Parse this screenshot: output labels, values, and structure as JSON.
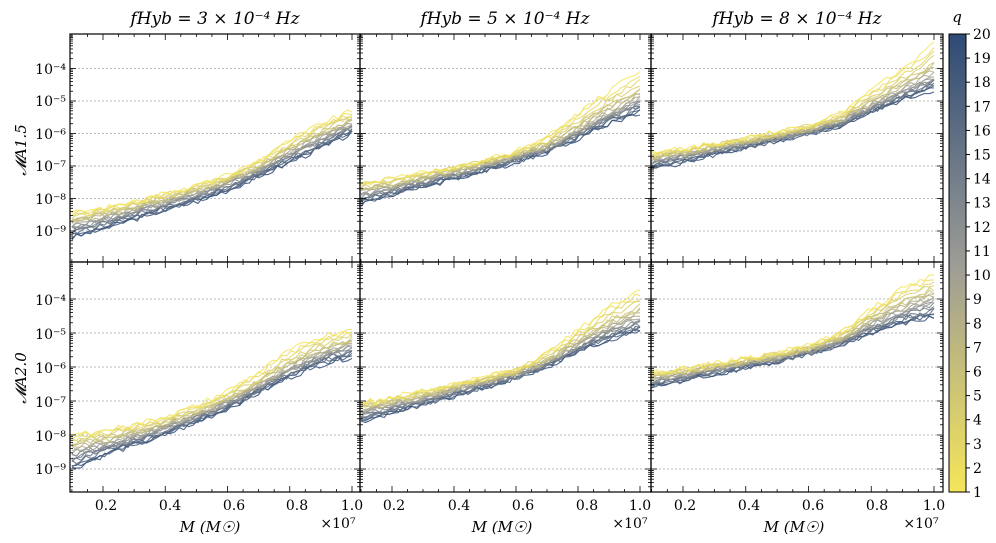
{
  "figure": {
    "colorbar": {
      "label": "q",
      "min": 1,
      "max": 20,
      "ticks": [
        "1",
        "2",
        "3",
        "4",
        "5",
        "6",
        "7",
        "8",
        "9",
        "10",
        "11",
        "12",
        "13",
        "14",
        "15",
        "16",
        "17",
        "18",
        "19",
        "20"
      ],
      "color_low": "#f5e55a",
      "color_mid": "#9c9c96",
      "color_high": "#2e4a75"
    },
    "x_axis": {
      "label": "M (M☉)",
      "ticks": [
        "0.2",
        "0.4",
        "0.6",
        "0.8",
        "1.0"
      ],
      "multiplier": "×10⁷"
    },
    "y_labels": [
      "𝓜A1.5",
      "𝓜A2.0"
    ],
    "y_ticks": [
      "10⁻⁹",
      "10⁻⁸",
      "10⁻⁷",
      "10⁻⁶",
      "10⁻⁵",
      "10⁻⁴"
    ],
    "column_titles": [
      "fHyb = 3 × 10⁻⁴ Hz",
      "fHyb = 5 × 10⁻⁴ Hz",
      "fHyb = 8 × 10⁻⁴ Hz"
    ]
  },
  "chart_data": [
    {
      "type": "line",
      "row": "A1.5",
      "title": "fHyb = 3 × 10⁻⁴ Hz",
      "xlabel": "M (M☉)",
      "ylabel": "MA1.5",
      "xlim": [
        1000000.0,
        10000000.0
      ],
      "ylim": [
        3e-10,
        0.001
      ],
      "yscale": "log",
      "x": [
        1000000.0,
        2000000.0,
        3000000.0,
        4000000.0,
        5000000.0,
        6000000.0,
        7000000.0,
        8000000.0,
        9000000.0,
        10000000.0
      ],
      "series": [
        {
          "q": 1,
          "values": [
            3.5e-09,
            5e-09,
            8e-09,
            1.5e-08,
            2.5e-08,
            5e-08,
            1.5e-07,
            6e-07,
            2e-06,
            5e-06
          ]
        },
        {
          "q": 5,
          "values": [
            2.5e-09,
            3.5e-09,
            6e-09,
            1.1e-08,
            2e-08,
            4e-08,
            1.1e-07,
            4e-07,
            1.2e-06,
            3e-06
          ]
        },
        {
          "q": 10,
          "values": [
            1.6e-09,
            2.5e-09,
            4.5e-09,
            8e-09,
            1.5e-08,
            3e-08,
            8e-08,
            2.5e-07,
            8e-07,
            2e-06
          ]
        },
        {
          "q": 15,
          "values": [
            1e-09,
            1.8e-09,
            3.2e-09,
            6e-09,
            1.1e-08,
            2.3e-08,
            6e-08,
            1.8e-07,
            5e-07,
            1.4e-06
          ]
        },
        {
          "q": 20,
          "values": [
            6e-10,
            1.2e-09,
            2.3e-09,
            4.5e-09,
            8e-09,
            1.8e-08,
            4.5e-08,
            1.3e-07,
            3.5e-07,
            1e-06
          ]
        }
      ]
    },
    {
      "type": "line",
      "row": "A1.5",
      "title": "fHyb = 5 × 10⁻⁴ Hz",
      "xlabel": "M (M☉)",
      "ylabel": "MA1.5",
      "xlim": [
        1000000.0,
        10000000.0
      ],
      "ylim": [
        3e-10,
        0.001
      ],
      "yscale": "log",
      "x": [
        1000000.0,
        2000000.0,
        3000000.0,
        4000000.0,
        5000000.0,
        6000000.0,
        7000000.0,
        8000000.0,
        9000000.0,
        10000000.0
      ],
      "series": [
        {
          "q": 1,
          "values": [
            3e-08,
            4e-08,
            6e-08,
            1e-07,
            1.6e-07,
            2.8e-07,
            8e-07,
            4e-06,
            2e-05,
            8e-05
          ]
        },
        {
          "q": 5,
          "values": [
            2.3e-08,
            3.2e-08,
            5e-08,
            8e-08,
            1.3e-07,
            2.3e-07,
            5e-07,
            2e-06,
            8e-06,
            2.5e-05
          ]
        },
        {
          "q": 10,
          "values": [
            1.5e-08,
            2.3e-08,
            3.8e-08,
            6.2e-08,
            1.05e-07,
            1.9e-07,
            3.8e-07,
            1.2e-06,
            4e-06,
            1.2e-05
          ]
        },
        {
          "q": 15,
          "values": [
            1e-08,
            1.7e-08,
            2.9e-08,
            5e-08,
            8.5e-08,
            1.6e-07,
            3.2e-07,
            9e-07,
            2.8e-06,
            7e-06
          ]
        },
        {
          "q": 20,
          "values": [
            7e-09,
            1.3e-08,
            2.3e-08,
            4e-08,
            7e-08,
            1.3e-07,
            2.7e-07,
            7e-07,
            2e-06,
            4.5e-06
          ]
        }
      ]
    },
    {
      "type": "line",
      "row": "A1.5",
      "title": "fHyb = 8 × 10⁻⁴ Hz",
      "xlabel": "M (M☉)",
      "ylabel": "MA1.5",
      "xlim": [
        1000000.0,
        10000000.0
      ],
      "ylim": [
        3e-10,
        0.001
      ],
      "yscale": "log",
      "x": [
        1000000.0,
        2000000.0,
        3000000.0,
        4000000.0,
        5000000.0,
        6000000.0,
        7000000.0,
        8000000.0,
        9000000.0,
        10000000.0
      ],
      "series": [
        {
          "q": 1,
          "values": [
            2.5e-07,
            3.5e-07,
            5e-07,
            7.5e-07,
            1.1e-06,
            1.8e-06,
            4e-06,
            2e-05,
            0.0001,
            0.0006
          ]
        },
        {
          "q": 5,
          "values": [
            2e-07,
            2.8e-07,
            4.2e-07,
            6.2e-07,
            9e-07,
            1.5e-06,
            3e-06,
            1.1e-05,
            4e-05,
            0.00015
          ]
        },
        {
          "q": 10,
          "values": [
            1.5e-07,
            2.2e-07,
            3.4e-07,
            5.2e-07,
            7.8e-07,
            1.25e-06,
            2.4e-06,
            7e-06,
            2.2e-05,
            6e-05
          ]
        },
        {
          "q": 15,
          "values": [
            1.1e-07,
            1.7e-07,
            2.7e-07,
            4.3e-07,
            6.7e-07,
            1.1e-06,
            2e-06,
            5.5e-06,
            1.5e-05,
            3.5e-05
          ]
        },
        {
          "q": 20,
          "values": [
            8e-08,
            1.3e-07,
            2.2e-07,
            3.6e-07,
            5.8e-07,
            9.5e-07,
            1.7e-06,
            4.5e-06,
            1.1e-05,
            2.2e-05
          ]
        }
      ]
    },
    {
      "type": "line",
      "row": "A2.0",
      "title": "",
      "xlabel": "M (M☉)",
      "ylabel": "MA2.0",
      "xlim": [
        1000000.0,
        10000000.0
      ],
      "ylim": [
        3e-10,
        0.001
      ],
      "yscale": "log",
      "x": [
        1000000.0,
        2000000.0,
        3000000.0,
        4000000.0,
        5000000.0,
        6000000.0,
        7000000.0,
        8000000.0,
        9000000.0,
        10000000.0
      ],
      "series": [
        {
          "q": 1,
          "values": [
            1e-08,
            1.3e-08,
            2e-08,
            3.5e-08,
            7e-08,
            2e-07,
            7e-07,
            3e-06,
            8e-06,
            1.3e-05
          ]
        },
        {
          "q": 5,
          "values": [
            6e-09,
            8.5e-09,
            1.4e-08,
            2.5e-08,
            5e-08,
            1.3e-07,
            4e-07,
            1.5e-06,
            4e-06,
            7e-06
          ]
        },
        {
          "q": 10,
          "values": [
            3.5e-09,
            5.5e-09,
            9.5e-09,
            1.8e-08,
            3.8e-08,
            9.5e-08,
            2.8e-07,
            9e-07,
            2.4e-06,
            4.5e-06
          ]
        },
        {
          "q": 15,
          "values": [
            2e-09,
            3.8e-09,
            7e-09,
            1.4e-08,
            3e-08,
            7.5e-08,
            2.1e-07,
            6.5e-07,
            1.7e-06,
            3e-06
          ]
        },
        {
          "q": 20,
          "values": [
            1e-09,
            2.5e-09,
            5e-09,
            1e-08,
            2.3e-08,
            6e-08,
            1.7e-07,
            5e-07,
            1.2e-06,
            2e-06
          ]
        }
      ]
    },
    {
      "type": "line",
      "row": "A2.0",
      "title": "",
      "xlabel": "M (M☉)",
      "ylabel": "MA2.0",
      "xlim": [
        1000000.0,
        10000000.0
      ],
      "ylim": [
        3e-10,
        0.001
      ],
      "yscale": "log",
      "x": [
        1000000.0,
        2000000.0,
        3000000.0,
        4000000.0,
        5000000.0,
        6000000.0,
        7000000.0,
        8000000.0,
        9000000.0,
        10000000.0
      ],
      "series": [
        {
          "q": 1,
          "values": [
            9e-08,
            1.3e-07,
            2e-07,
            3.2e-07,
            5e-07,
            9e-07,
            2.5e-06,
            1.2e-05,
            6e-05,
            0.0002
          ]
        },
        {
          "q": 5,
          "values": [
            7e-08,
            1e-07,
            1.6e-07,
            2.6e-07,
            4.2e-07,
            7.5e-07,
            1.8e-06,
            7e-06,
            2.5e-05,
            6e-05
          ]
        },
        {
          "q": 10,
          "values": [
            5e-08,
            7.8e-08,
            1.25e-07,
            2.1e-07,
            3.5e-07,
            6.2e-07,
            1.4e-06,
            4.5e-06,
            1.4e-05,
            3e-05
          ]
        },
        {
          "q": 15,
          "values": [
            3.5e-08,
            5.8e-08,
            9.8e-08,
            1.7e-07,
            2.9e-07,
            5.3e-07,
            1.2e-06,
            3.5e-06,
            9e-06,
            1.8e-05
          ]
        },
        {
          "q": 20,
          "values": [
            2.5e-08,
            4.5e-08,
            8e-08,
            1.4e-07,
            2.5e-07,
            4.6e-07,
            1e-06,
            2.8e-06,
            6.5e-06,
            1.2e-05
          ]
        }
      ]
    },
    {
      "type": "line",
      "row": "A2.0",
      "title": "",
      "xlabel": "M (M☉)",
      "ylabel": "MA2.0",
      "xlim": [
        1000000.0,
        10000000.0
      ],
      "ylim": [
        3e-10,
        0.001
      ],
      "yscale": "log",
      "x": [
        1000000.0,
        2000000.0,
        3000000.0,
        4000000.0,
        5000000.0,
        6000000.0,
        7000000.0,
        8000000.0,
        9000000.0,
        10000000.0
      ],
      "series": [
        {
          "q": 1,
          "values": [
            7e-07,
            9e-07,
            1.3e-06,
            1.8e-06,
            2.6e-06,
            4.2e-06,
            1e-05,
            5e-05,
            0.0002,
            0.0005
          ]
        },
        {
          "q": 5,
          "values": [
            5.5e-07,
            7.5e-07,
            1.05e-06,
            1.5e-06,
            2.2e-06,
            3.5e-06,
            7.5e-06,
            3e-05,
            9e-05,
            0.0002
          ]
        },
        {
          "q": 10,
          "values": [
            4.2e-07,
            6e-07,
            8.8e-07,
            1.3e-06,
            1.9e-06,
            3e-06,
            5.8e-06,
            1.8e-05,
            5e-05,
            0.0001
          ]
        },
        {
          "q": 15,
          "values": [
            3.2e-07,
            4.8e-07,
            7.3e-07,
            1.1e-06,
            1.6e-06,
            2.6e-06,
            4.8e-06,
            1.3e-05,
            3e-05,
            5e-05
          ]
        },
        {
          "q": 20,
          "values": [
            2.5e-07,
            3.9e-07,
            6.2e-07,
            9.5e-07,
            1.4e-06,
            2.3e-06,
            4.2e-06,
            1e-05,
            1.9e-05,
            2.8e-05
          ]
        }
      ]
    }
  ]
}
